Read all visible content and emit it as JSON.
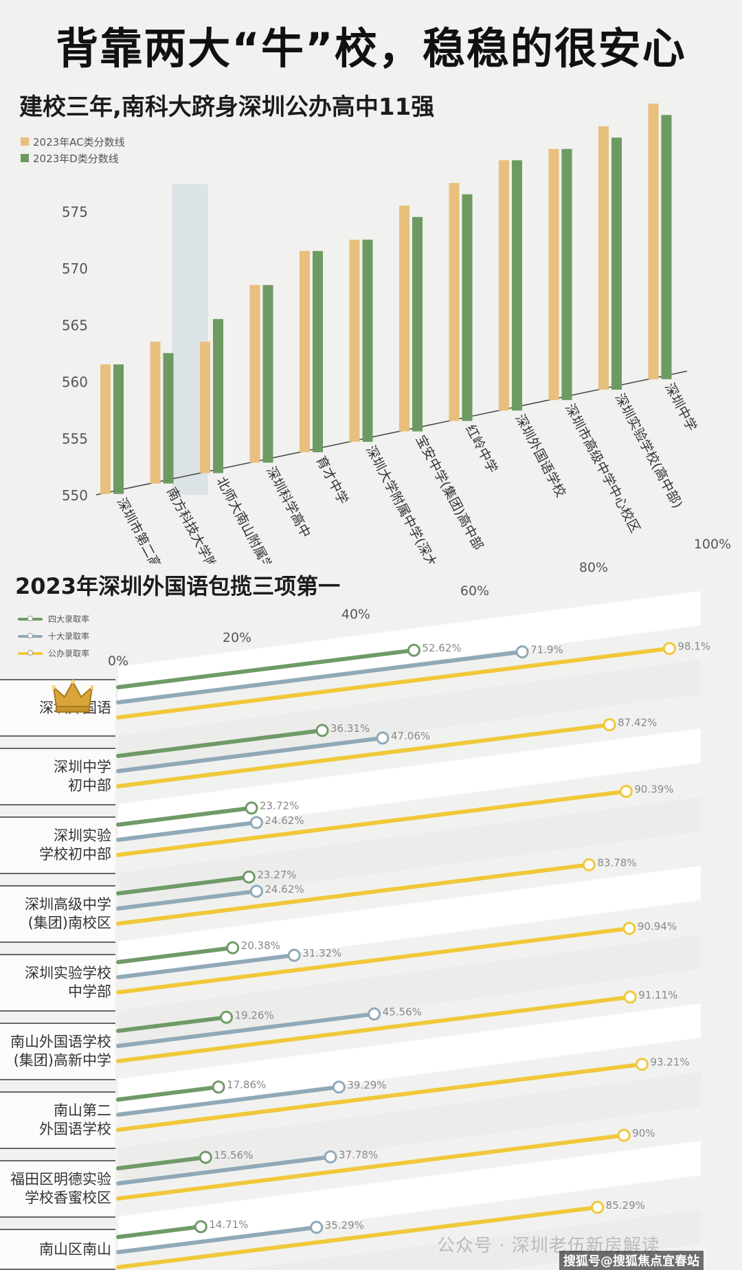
{
  "header": {
    "main_title": "背靠两大“牛”校，稳稳的很安心",
    "watermark": "公众号 · 深圳老伍新房解读",
    "source": "搜狐号@搜狐焦点宜春站"
  },
  "colors": {
    "ac": "#e8bf7c",
    "d": "#6d9a61",
    "top4": "#6f9a67",
    "top10": "#8fa9b8",
    "public": "#f0c83a"
  },
  "chart_data": [
    {
      "type": "bar",
      "title": "建校三年,南科大跻身深圳公办高中11强",
      "categories": [
        "深圳市第二高级中学",
        "南方科技大学附属中学",
        "北师大南山附属学校中学部",
        "深圳科学高中",
        "育才中学",
        "深圳大学附属中学(深大附中)",
        "宝安中学(集团)高中部",
        "红岭中学",
        "深圳外国语学校",
        "深圳市高级中学中心校区",
        "深圳实验学校(高中部)",
        "深圳中学"
      ],
      "series": [
        {
          "name": "2023年AC类分数线",
          "values": [
            561.5,
            563.5,
            563.5,
            568.5,
            571.5,
            572.5,
            575.5,
            577.5,
            579.5,
            580.5,
            582.5,
            584.5
          ]
        },
        {
          "name": "2023年D类分数线",
          "values": [
            561.5,
            562.5,
            565.5,
            568.5,
            571.5,
            572.5,
            574.5,
            576.5,
            579.5,
            580.5,
            581.5,
            583.5
          ]
        }
      ],
      "ylim": [
        550,
        585
      ],
      "yticks": [
        550,
        555,
        560,
        565,
        570,
        575
      ],
      "highlight": "南方科技大学附属中学",
      "legend": "top-left"
    },
    {
      "type": "line",
      "title": "2023年深圳外国语包揽三项第一",
      "x_ticks": [
        "0%",
        "20%",
        "40%",
        "60%",
        "80%",
        "100%"
      ],
      "series_names": [
        "四大录取率",
        "十大录取率",
        "公办录取率"
      ],
      "rows": [
        {
          "school": [
            "深圳外国语"
          ],
          "top4": 52.62,
          "top10": 71.9,
          "public": 98.1,
          "top4_label": "52.62%",
          "top10_label": "71.9%",
          "public_label": "98.1%"
        },
        {
          "school": [
            "深圳中学",
            "初中部"
          ],
          "top4": 36.31,
          "top10": 47.06,
          "public": 87.42,
          "top4_label": "36.31%",
          "top10_label": "47.06%",
          "public_label": "87.42%"
        },
        {
          "school": [
            "深圳实验",
            "学校初中部"
          ],
          "top4": 23.72,
          "top10": 24.62,
          "public": 90.39,
          "top4_label": "23.72%",
          "top10_label": "24.62%",
          "public_label": "90.39%"
        },
        {
          "school": [
            "深圳高级中学",
            "(集团)南校区"
          ],
          "top4": 23.27,
          "top10": 24.62,
          "public": 83.78,
          "top4_label": "23.27%",
          "top10_label": "24.62%",
          "public_label": "83.78%"
        },
        {
          "school": [
            "深圳实验学校",
            "中学部"
          ],
          "top4": 20.38,
          "top10": 31.32,
          "public": 90.94,
          "top4_label": "20.38%",
          "top10_label": "31.32%",
          "public_label": "90.94%"
        },
        {
          "school": [
            "南山外国语学校",
            "(集团)高新中学"
          ],
          "top4": 19.26,
          "top10": 45.56,
          "public": 91.11,
          "top4_label": "19.26%",
          "top10_label": "45.56%",
          "public_label": "91.11%"
        },
        {
          "school": [
            "南山第二",
            "外国语学校"
          ],
          "top4": 17.86,
          "top10": 39.29,
          "public": 93.21,
          "top4_label": "17.86%",
          "top10_label": "39.29%",
          "public_label": "93.21%"
        },
        {
          "school": [
            "福田区明德实验",
            "学校香蜜校区"
          ],
          "top4": 15.56,
          "top10": 37.78,
          "public": 90,
          "top4_label": "15.56%",
          "top10_label": "37.78%",
          "public_label": "90%"
        },
        {
          "school": [
            "南山区南山"
          ],
          "top4": 14.71,
          "top10": 35.29,
          "public": 85.29,
          "top4_label": "14.71%",
          "top10_label": "35.29%",
          "public_label": "85.29%"
        }
      ],
      "legend": "top-left"
    }
  ]
}
